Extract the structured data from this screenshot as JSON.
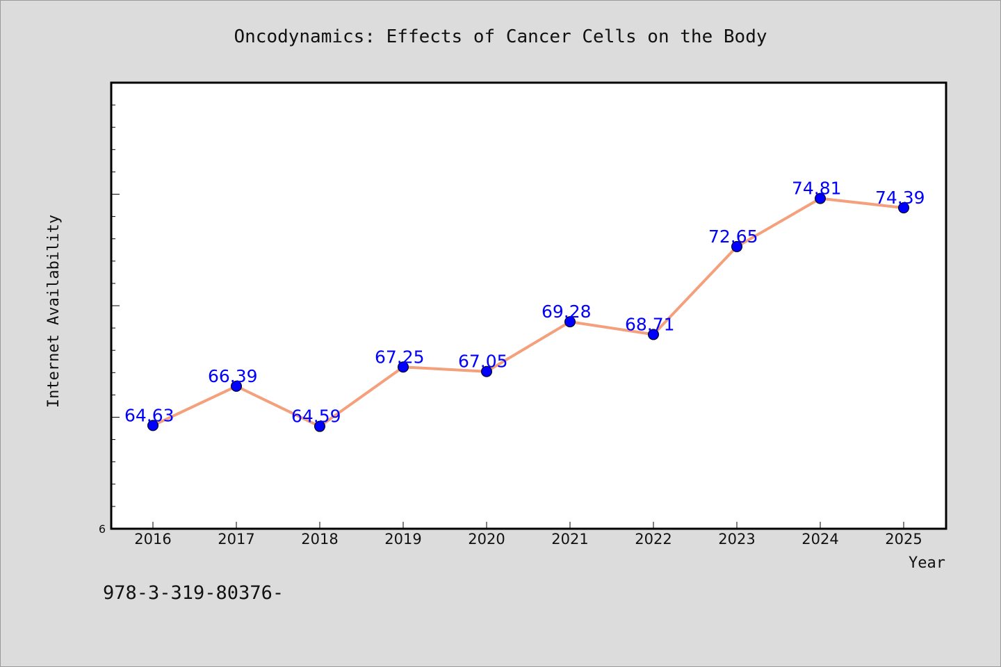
{
  "chart_data": {
    "type": "line",
    "title": "Oncodynamics: Effects of Cancer Cells on the Body",
    "xlabel": "Year",
    "ylabel": "Internet Availability",
    "categories": [
      "2016",
      "2017",
      "2018",
      "2019",
      "2020",
      "2021",
      "2022",
      "2023",
      "2024",
      "2025"
    ],
    "series": [
      {
        "values": [
          64.63,
          66.39,
          64.59,
          67.25,
          67.05,
          69.28,
          68.71,
          72.65,
          74.81,
          74.39
        ],
        "data_labels": [
          "64.63",
          "66.39",
          "64.59",
          "67.25",
          "67.05",
          "69.28",
          "68.71",
          "72.65",
          "74.81",
          "74.39"
        ]
      }
    ],
    "ylim": [
      60,
      80
    ],
    "y_tick_labels": [
      "6"
    ],
    "grid": false,
    "legend": "none",
    "colors": {
      "line": "#f4a07c",
      "marker": "#0000ff",
      "marker_edge": "#000000",
      "data_label": "#0000ff",
      "plot_background": "#ffffff",
      "figure_background": "#dcdcdc"
    }
  },
  "footnote": "978-3-319-80376-"
}
